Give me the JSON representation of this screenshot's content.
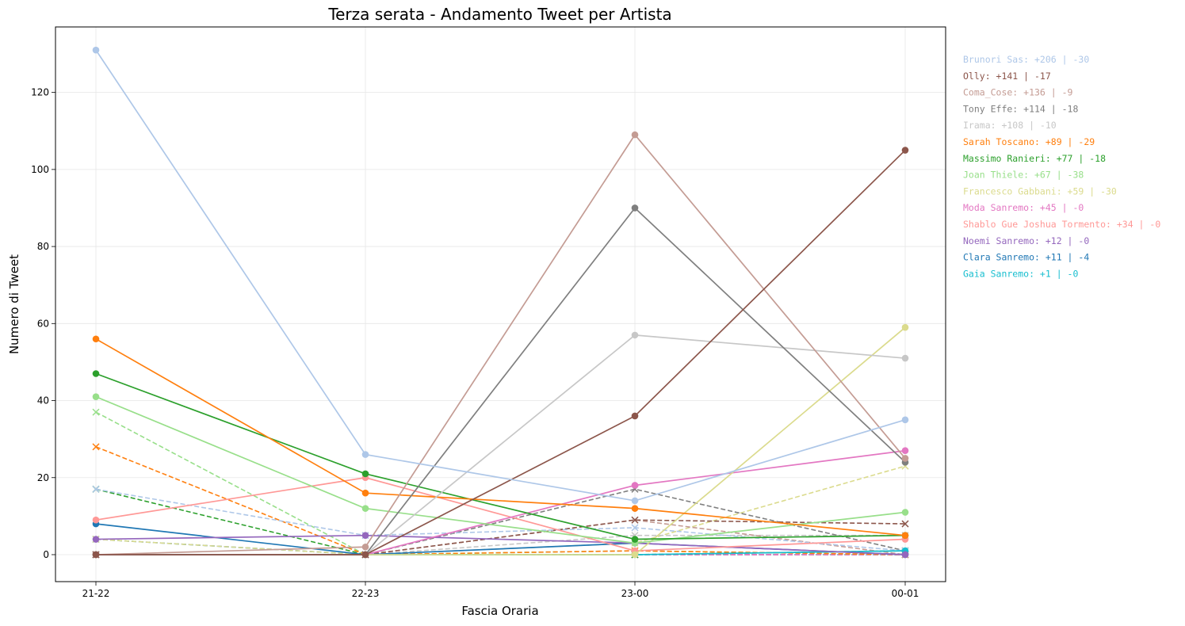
{
  "chart_data": {
    "type": "line",
    "title": "Terza serata - Andamento Tweet per Artista",
    "xlabel": "Fascia Oraria",
    "ylabel": "Numero di Tweet",
    "categories": [
      "21-22",
      "22-23",
      "23-00",
      "00-01"
    ],
    "ylim": [
      -7,
      137
    ],
    "yticks": [
      0,
      20,
      40,
      60,
      80,
      100,
      120
    ],
    "ytick_labels": [
      "0",
      "20",
      "40",
      "60",
      "80",
      "100",
      "120"
    ],
    "grid": true,
    "legend_position": "right",
    "series": [
      {
        "name": "Brunori Sas",
        "color": "#aec7e8",
        "legend_label": "Brunori Sas: +206 | -30",
        "positive": [
          131,
          26,
          14,
          35
        ],
        "negative": [
          17,
          5,
          7,
          1
        ]
      },
      {
        "name": "Olly",
        "color": "#8c564b",
        "legend_label": "Olly: +141 | -17",
        "positive": [
          0,
          0,
          36,
          105
        ],
        "negative": [
          0,
          0,
          9,
          8
        ]
      },
      {
        "name": "Coma_Cose",
        "color": "#c49c94",
        "legend_label": "Coma_Cose: +136 | -9",
        "positive": [
          0,
          2,
          109,
          25
        ],
        "negative": [
          0,
          0,
          9,
          0
        ]
      },
      {
        "name": "Tony Effe",
        "color": "#7f7f7f",
        "legend_label": "Tony Effe: +114 | -18",
        "positive": [
          0,
          0,
          90,
          24
        ],
        "negative": [
          0,
          0,
          17,
          1
        ]
      },
      {
        "name": "Irama",
        "color": "#c7c7c7",
        "legend_label": "Irama: +108 | -10",
        "positive": [
          0,
          0,
          57,
          51
        ],
        "negative": [
          0,
          0,
          5,
          5
        ]
      },
      {
        "name": "Sarah Toscano",
        "color": "#ff7f0e",
        "legend_label": "Sarah Toscano: +89 | -29",
        "positive": [
          56,
          16,
          12,
          5
        ],
        "negative": [
          28,
          0,
          1,
          0
        ]
      },
      {
        "name": "Massimo Ranieri",
        "color": "#2ca02c",
        "legend_label": "Massimo Ranieri: +77 | -18",
        "positive": [
          47,
          21,
          4,
          5
        ],
        "negative": [
          17,
          0,
          0,
          1
        ]
      },
      {
        "name": "Joan Thiele",
        "color": "#98df8a",
        "legend_label": "Joan Thiele: +67 | -38",
        "positive": [
          41,
          12,
          3,
          11
        ],
        "negative": [
          37,
          0,
          1,
          0
        ]
      },
      {
        "name": "Francesco Gabbani",
        "color": "#dbdb8d",
        "legend_label": "Francesco Gabbani: +59 | -30",
        "positive": [
          0,
          0,
          0,
          59
        ],
        "negative": [
          4,
          0,
          3,
          23
        ]
      },
      {
        "name": "Moda Sanremo",
        "color": "#e377c2",
        "legend_label": "Moda Sanremo: +45 | -0",
        "positive": [
          0,
          0,
          18,
          27
        ],
        "negative": [
          0,
          0,
          0,
          0
        ]
      },
      {
        "name": "Shablo Gue Joshua Tormento",
        "color": "#ff9896",
        "legend_label": "Shablo Gue Joshua Tormento: +34 | -0",
        "positive": [
          9,
          20,
          1,
          4
        ],
        "negative": [
          0,
          0,
          0,
          0
        ]
      },
      {
        "name": "Noemi Sanremo",
        "color": "#9467bd",
        "legend_label": "Noemi Sanremo: +12 | -0",
        "positive": [
          4,
          5,
          3,
          0
        ],
        "negative": [
          0,
          0,
          0,
          0
        ]
      },
      {
        "name": "Clara Sanremo",
        "color": "#1f77b4",
        "legend_label": "Clara Sanremo: +11 | -4",
        "positive": [
          8,
          0,
          3,
          0
        ],
        "negative": [
          4,
          0,
          0,
          0
        ]
      },
      {
        "name": "Gaia Sanremo",
        "color": "#17becf",
        "legend_label": "Gaia Sanremo: +1 | -0",
        "positive": [
          0,
          0,
          0,
          1
        ],
        "negative": [
          0,
          0,
          0,
          0
        ]
      }
    ]
  }
}
